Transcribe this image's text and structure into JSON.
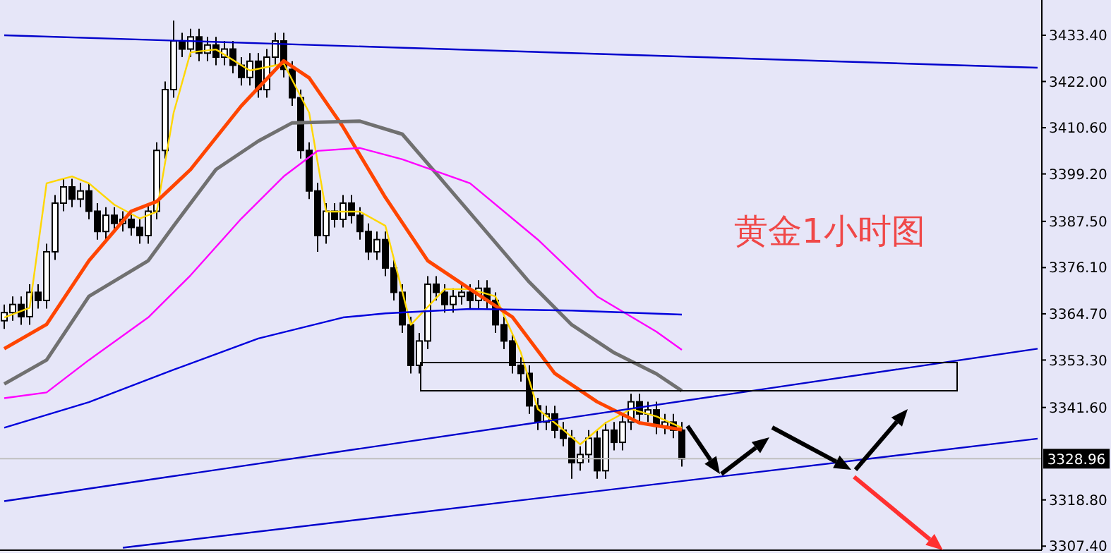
{
  "chart_data": {
    "type": "candlestick",
    "tick_labels": "y",
    "grid": false,
    "annotations": [
      "黄金1小时图"
    ],
    "categories": [
      null,
      null,
      null,
      null,
      null,
      null,
      null,
      null,
      null,
      null,
      null,
      null,
      null,
      null,
      null,
      null,
      null,
      null,
      null,
      null,
      null,
      null,
      null,
      null,
      null,
      null,
      null,
      null,
      null,
      null,
      null,
      null,
      null,
      null,
      null,
      null,
      null,
      null,
      null,
      null,
      null,
      null,
      null,
      null,
      null,
      null,
      null,
      null,
      null,
      null,
      null,
      null,
      null,
      null,
      null,
      null,
      null,
      null,
      null,
      null,
      null,
      null,
      null,
      null,
      null,
      null,
      null,
      null,
      null,
      null,
      null,
      null,
      null,
      null,
      null,
      null,
      null,
      null,
      null,
      null,
      null,
      null,
      null,
      null,
      null,
      null,
      null,
      null,
      null,
      null,
      null,
      null,
      null,
      null,
      null,
      null,
      null,
      null,
      null,
      null,
      null,
      null,
      null,
      null,
      null,
      null,
      null,
      null,
      null,
      null,
      null,
      null,
      null,
      null,
      null,
      null,
      null,
      null,
      null,
      null,
      null,
      null,
      null
    ],
    "ylim": [
      3306.4,
      3442.1
    ],
    "yticks": [
      {
        "value": 3307.4,
        "label": "3307.40"
      },
      {
        "value": 3318.8,
        "label": "3318.80"
      },
      {
        "value": 3341.6,
        "label": "3341.60"
      },
      {
        "value": 3353.3,
        "label": "3353.30"
      },
      {
        "value": 3364.7,
        "label": "3364.70"
      },
      {
        "value": 3376.1,
        "label": "3376.10"
      },
      {
        "value": 3387.5,
        "label": "3387.50"
      },
      {
        "value": 3399.2,
        "label": "3399.20"
      },
      {
        "value": 3410.6,
        "label": "3410.60"
      },
      {
        "value": 3422,
        "label": "3422.00"
      },
      {
        "value": 3433.4,
        "label": "3433.40"
      }
    ],
    "ref_lines": [
      {
        "axis": "y",
        "value": 3328.96,
        "label": "3328.96",
        "color": "#c0c0c0"
      }
    ],
    "ohlc": [
      [
        3363,
        3367,
        3361,
        3365
      ],
      [
        3365,
        3369,
        3363,
        3367
      ],
      [
        3367,
        3369,
        3362,
        3364
      ],
      [
        3364,
        3372,
        3362,
        3370
      ],
      [
        3370,
        3372,
        3366,
        3368
      ],
      [
        3368,
        3382,
        3366,
        3380
      ],
      [
        3380,
        3394,
        3378,
        3392
      ],
      [
        3392,
        3398,
        3390,
        3396
      ],
      [
        3396,
        3398,
        3391,
        3393
      ],
      [
        3393,
        3397,
        3391,
        3395
      ],
      [
        3395,
        3397,
        3388,
        3390
      ],
      [
        3390,
        3392,
        3383,
        3385
      ],
      [
        3385,
        3391,
        3383,
        3389
      ],
      [
        3389,
        3391,
        3385,
        3387
      ],
      [
        3387,
        3390,
        3385,
        3388
      ],
      [
        3388,
        3390,
        3384,
        3386
      ],
      [
        3386,
        3388,
        3382,
        3384
      ],
      [
        3384,
        3392,
        3382,
        3390
      ],
      [
        3390,
        3407,
        3388,
        3405
      ],
      [
        3405,
        3422,
        3403,
        3420
      ],
      [
        3420,
        3437,
        3418,
        3432
      ],
      [
        3432,
        3434,
        3428,
        3430
      ],
      [
        3430,
        3435,
        3428,
        3433
      ],
      [
        3433,
        3435,
        3427,
        3429
      ],
      [
        3429,
        3433,
        3427,
        3431
      ],
      [
        3431,
        3433,
        3426,
        3428
      ],
      [
        3428,
        3432,
        3426,
        3430
      ],
      [
        3430,
        3432,
        3424,
        3426
      ],
      [
        3426,
        3428,
        3421,
        3423
      ],
      [
        3423,
        3429,
        3421,
        3427
      ],
      [
        3427,
        3429,
        3418,
        3420
      ],
      [
        3420,
        3430,
        3418,
        3428
      ],
      [
        3428,
        3434,
        3426,
        3432
      ],
      [
        3432,
        3434,
        3423,
        3425
      ],
      [
        3425,
        3427,
        3416,
        3418
      ],
      [
        3418,
        3420,
        3403,
        3405
      ],
      [
        3405,
        3407,
        3393,
        3395
      ],
      [
        3395,
        3397,
        3380,
        3384
      ],
      [
        3384,
        3392,
        3382,
        3390
      ],
      [
        3390,
        3392,
        3386,
        3388
      ],
      [
        3388,
        3394,
        3386,
        3392
      ],
      [
        3392,
        3394,
        3387,
        3389
      ],
      [
        3389,
        3391,
        3383,
        3385
      ],
      [
        3385,
        3387,
        3378,
        3380
      ],
      [
        3380,
        3385,
        3378,
        3383
      ],
      [
        3383,
        3385,
        3374,
        3376
      ],
      [
        3376,
        3378,
        3368,
        3370
      ],
      [
        3370,
        3372,
        3360,
        3362
      ],
      [
        3362,
        3364,
        3350,
        3352
      ],
      [
        3352,
        3360,
        3350,
        3358
      ],
      [
        3358,
        3374,
        3356,
        3372
      ],
      [
        3372,
        3374,
        3368,
        3370
      ],
      [
        3370,
        3372,
        3365,
        3367
      ],
      [
        3367,
        3371,
        3365,
        3369
      ],
      [
        3369,
        3372,
        3367,
        3370
      ],
      [
        3370,
        3372,
        3366,
        3368
      ],
      [
        3368,
        3373,
        3366,
        3371
      ],
      [
        3371,
        3373,
        3366,
        3368
      ],
      [
        3368,
        3370,
        3360,
        3362
      ],
      [
        3362,
        3364,
        3356,
        3358
      ],
      [
        3358,
        3360,
        3350,
        3352
      ],
      [
        3352,
        3354,
        3348,
        3350
      ],
      [
        3350,
        3352,
        3340,
        3342
      ],
      [
        3342,
        3344,
        3336,
        3338
      ],
      [
        3338,
        3342,
        3336,
        3340
      ],
      [
        3340,
        3342,
        3334,
        3336
      ],
      [
        3336,
        3338,
        3332,
        3334
      ],
      [
        3334,
        3336,
        3324,
        3328
      ],
      [
        3328,
        3332,
        3326,
        3330
      ],
      [
        3330,
        3336,
        3328,
        3334
      ],
      [
        3334,
        3336,
        3324,
        3326
      ],
      [
        3326,
        3338,
        3324,
        3336
      ],
      [
        3336,
        3338,
        3331,
        3333
      ],
      [
        3333,
        3340,
        3331,
        3338
      ],
      [
        3338,
        3345,
        3336,
        3343
      ],
      [
        3343,
        3345,
        3338,
        3340
      ],
      [
        3340,
        3343,
        3338,
        3341
      ],
      [
        3341,
        3343,
        3335,
        3337
      ],
      [
        3337,
        3340,
        3335,
        3338
      ],
      [
        3338,
        3340,
        3334,
        3336
      ],
      [
        3336,
        3338,
        3327,
        3328.96
      ],
      null,
      null,
      null,
      null,
      null,
      null,
      null,
      null,
      null,
      null,
      null,
      null,
      null,
      null,
      null,
      null,
      null,
      null,
      null,
      null,
      null,
      null,
      null,
      null,
      null,
      null,
      null,
      null,
      null,
      null,
      null,
      null,
      null,
      null,
      null,
      null,
      null,
      null,
      null,
      null,
      null,
      null
    ],
    "series": [
      {
        "type": "line",
        "color": "#ffd700",
        "values": [
          3363.8,
          null,
          null,
          3366.2,
          null,
          3396.9,
          null,
          null,
          3398.6,
          null,
          3396.9,
          null,
          null,
          3391.6,
          null,
          null,
          3388.2,
          null,
          3389.9,
          null,
          3414.3,
          null,
          3429.2,
          null,
          null,
          3429.9,
          null,
          null,
          null,
          3424.7,
          null,
          null,
          null,
          3426.4,
          null,
          null,
          3414.3,
          null,
          3389.9,
          null,
          null,
          null,
          3389.9,
          null,
          null,
          3386.4,
          null,
          null,
          3362,
          null,
          null,
          null,
          3370.8,
          null,
          null,
          3370.8,
          null,
          null,
          3369,
          null,
          null,
          3355.1,
          null,
          3341.2,
          null,
          null,
          3336.1,
          null,
          3332.5,
          null,
          null,
          3337.8,
          null,
          null,
          3341.2,
          null,
          null,
          3339.4,
          null,
          null,
          3336.6,
          null,
          null,
          null,
          null,
          null,
          null,
          null,
          null,
          null,
          null,
          null,
          null,
          null,
          null,
          null,
          null,
          null,
          null,
          null,
          null,
          null,
          null,
          null,
          null,
          null,
          null,
          null,
          null,
          null,
          null,
          null,
          null,
          null,
          null,
          null,
          null,
          null,
          null,
          null,
          null,
          null,
          null
        ]
      },
      {
        "type": "line",
        "color": "#ff4500",
        "values": [
          3356.1,
          null,
          null,
          null,
          null,
          3362.1,
          null,
          null,
          null,
          null,
          3377.8,
          null,
          null,
          null,
          null,
          3390,
          null,
          null,
          3392.4,
          null,
          null,
          null,
          3400.3,
          null,
          null,
          null,
          null,
          null,
          3416,
          null,
          null,
          null,
          null,
          3427.1,
          null,
          null,
          3422.9,
          null,
          null,
          null,
          3410.8,
          null,
          null,
          null,
          null,
          3393.4,
          null,
          null,
          null,
          null,
          3377.8,
          null,
          null,
          null,
          null,
          3370.8,
          null,
          null,
          null,
          null,
          3363.9,
          null,
          null,
          null,
          null,
          3350,
          null,
          null,
          null,
          null,
          3343,
          null,
          null,
          null,
          null,
          3337.8,
          null,
          null,
          null,
          null,
          3336.1,
          null,
          null,
          null,
          null,
          null,
          null,
          null,
          null,
          null,
          null,
          null,
          null,
          null,
          null,
          null,
          null,
          null,
          null,
          null,
          null,
          null,
          null,
          null,
          null,
          null,
          null,
          null,
          null,
          null,
          null,
          null,
          null,
          null,
          null,
          null,
          null,
          null,
          null,
          null,
          null,
          null,
          null
        ]
      },
      {
        "type": "line",
        "color": "#707070",
        "values": [
          3347.4,
          null,
          null,
          null,
          null,
          3353.3,
          null,
          null,
          null,
          null,
          3369,
          null,
          null,
          null,
          null,
          null,
          null,
          3377.8,
          null,
          null,
          3386.4,
          null,
          null,
          null,
          null,
          3400.3,
          null,
          null,
          null,
          null,
          3407.3,
          null,
          null,
          null,
          3411.8,
          null,
          null,
          null,
          null,
          null,
          null,
          null,
          3412.2,
          null,
          null,
          null,
          null,
          3409,
          null,
          null,
          null,
          null,
          3396.9,
          null,
          null,
          null,
          null,
          3384.7,
          null,
          null,
          null,
          null,
          3372.5,
          null,
          null,
          null,
          null,
          3362,
          null,
          null,
          null,
          null,
          3355.1,
          null,
          null,
          null,
          null,
          3349.9,
          null,
          null,
          3345.7,
          null,
          null,
          null,
          null,
          null,
          null,
          null,
          null,
          null,
          null,
          null,
          null,
          null,
          null,
          null,
          null,
          null,
          null,
          null,
          null,
          null,
          null,
          null,
          null,
          null,
          null,
          null,
          null,
          null,
          null,
          null,
          null,
          null,
          null,
          null,
          null,
          null,
          null,
          null,
          null,
          null,
          null
        ]
      },
      {
        "type": "line",
        "color": "#ff00ff",
        "values": [
          3343.9,
          null,
          null,
          null,
          null,
          3345.3,
          null,
          null,
          null,
          null,
          3353.3,
          null,
          null,
          null,
          null,
          null,
          null,
          3363.8,
          null,
          null,
          null,
          null,
          3374.2,
          null,
          null,
          null,
          null,
          null,
          3388.2,
          null,
          null,
          null,
          null,
          3398.6,
          null,
          null,
          null,
          3404.9,
          null,
          null,
          null,
          null,
          3405.6,
          null,
          null,
          null,
          null,
          3402.8,
          null,
          null,
          null,
          null,
          null,
          null,
          null,
          3396.9,
          null,
          null,
          null,
          null,
          null,
          null,
          null,
          3383,
          null,
          null,
          null,
          null,
          null,
          null,
          3369,
          null,
          null,
          null,
          null,
          null,
          null,
          3360.3,
          null,
          null,
          3355.8,
          null,
          null,
          null,
          null,
          null,
          null,
          null,
          null,
          null,
          null,
          null,
          null,
          null,
          null,
          null,
          null,
          null,
          null,
          null,
          null,
          null,
          null,
          null,
          null,
          null,
          null,
          null,
          null,
          null,
          null,
          null,
          null,
          null,
          null,
          null,
          null,
          null,
          null,
          null,
          null,
          null,
          null
        ]
      },
      {
        "type": "line",
        "color": "#0000dd",
        "values": [
          3336.6,
          null,
          null,
          null,
          null,
          null,
          null,
          null,
          null,
          null,
          3342.9,
          null,
          null,
          null,
          null,
          null,
          null,
          null,
          null,
          null,
          3350.9,
          null,
          null,
          null,
          null,
          null,
          null,
          null,
          null,
          null,
          3358.6,
          null,
          null,
          null,
          null,
          null,
          null,
          null,
          null,
          null,
          3363.8,
          null,
          null,
          null,
          null,
          3364.8,
          null,
          null,
          null,
          null,
          null,
          null,
          null,
          null,
          null,
          3365.9,
          null,
          null,
          null,
          null,
          null,
          null,
          null,
          null,
          null,
          null,
          null,
          3365.5,
          null,
          null,
          null,
          null,
          null,
          null,
          null,
          null,
          null,
          null,
          null,
          null,
          3364.5,
          null,
          null,
          null,
          null,
          null,
          null,
          null,
          null,
          null,
          null,
          null,
          null,
          null,
          null,
          null,
          null,
          null,
          null,
          null,
          null,
          null,
          null,
          null,
          null,
          null,
          null,
          null,
          null,
          null,
          null,
          null,
          null,
          null,
          null,
          null,
          null,
          null,
          null,
          null,
          null,
          null,
          null
        ]
      },
      {
        "type": "line",
        "color": "#0000cc",
        "values": [
          3433.4,
          null,
          null,
          null,
          null,
          null,
          null,
          null,
          null,
          null,
          null,
          null,
          null,
          null,
          null,
          null,
          null,
          null,
          null,
          null,
          null,
          null,
          null,
          null,
          null,
          null,
          null,
          null,
          null,
          null,
          null,
          null,
          null,
          null,
          null,
          null,
          null,
          null,
          null,
          null,
          null,
          null,
          null,
          null,
          null,
          null,
          null,
          null,
          null,
          null,
          null,
          null,
          null,
          null,
          null,
          null,
          null,
          null,
          null,
          null,
          null,
          null,
          null,
          null,
          null,
          null,
          null,
          null,
          null,
          null,
          null,
          null,
          null,
          null,
          null,
          null,
          null,
          null,
          null,
          null,
          null,
          null,
          null,
          null,
          null,
          null,
          null,
          null,
          null,
          null,
          null,
          null,
          null,
          null,
          null,
          null,
          null,
          null,
          null,
          null,
          null,
          null,
          null,
          null,
          null,
          null,
          null,
          null,
          null,
          null,
          null,
          null,
          null,
          null,
          null,
          null,
          null,
          null,
          null,
          null,
          null,
          null,
          3425.4
        ]
      },
      {
        "type": "line",
        "color": "#0000cc",
        "values": [
          3318.5,
          null,
          null,
          null,
          null,
          null,
          null,
          null,
          null,
          null,
          null,
          null,
          null,
          null,
          null,
          null,
          null,
          null,
          null,
          null,
          null,
          null,
          null,
          null,
          null,
          null,
          null,
          null,
          null,
          null,
          null,
          null,
          null,
          null,
          null,
          null,
          null,
          null,
          null,
          null,
          null,
          null,
          null,
          null,
          null,
          null,
          null,
          null,
          null,
          null,
          null,
          null,
          null,
          null,
          null,
          null,
          null,
          null,
          null,
          null,
          null,
          null,
          null,
          null,
          null,
          null,
          null,
          null,
          null,
          null,
          null,
          null,
          null,
          null,
          null,
          null,
          null,
          null,
          null,
          null,
          null,
          null,
          null,
          null,
          null,
          null,
          null,
          null,
          null,
          null,
          null,
          null,
          null,
          null,
          null,
          null,
          null,
          null,
          null,
          null,
          null,
          null,
          null,
          null,
          null,
          null,
          null,
          null,
          null,
          null,
          null,
          null,
          null,
          null,
          null,
          null,
          null,
          null,
          null,
          null,
          null,
          null,
          3356.1
        ]
      },
      {
        "type": "line",
        "color": "#0000cc",
        "values": [
          null,
          null,
          null,
          null,
          null,
          null,
          null,
          null,
          null,
          null,
          null,
          null,
          null,
          null,
          3307,
          null,
          null,
          null,
          null,
          null,
          null,
          null,
          null,
          null,
          null,
          null,
          null,
          null,
          null,
          null,
          null,
          null,
          null,
          null,
          null,
          null,
          null,
          null,
          null,
          null,
          null,
          null,
          null,
          null,
          null,
          null,
          null,
          null,
          null,
          null,
          null,
          null,
          null,
          null,
          null,
          null,
          null,
          null,
          null,
          null,
          null,
          null,
          null,
          null,
          null,
          null,
          null,
          null,
          null,
          null,
          null,
          null,
          null,
          null,
          null,
          null,
          null,
          null,
          null,
          null,
          null,
          null,
          null,
          null,
          null,
          null,
          null,
          null,
          null,
          null,
          null,
          null,
          null,
          null,
          null,
          null,
          null,
          null,
          null,
          null,
          null,
          null,
          null,
          null,
          null,
          null,
          null,
          null,
          null,
          null,
          null,
          null,
          null,
          null,
          null,
          null,
          null,
          null,
          null,
          null,
          null,
          null,
          3333.9
        ]
      }
    ]
  }
}
